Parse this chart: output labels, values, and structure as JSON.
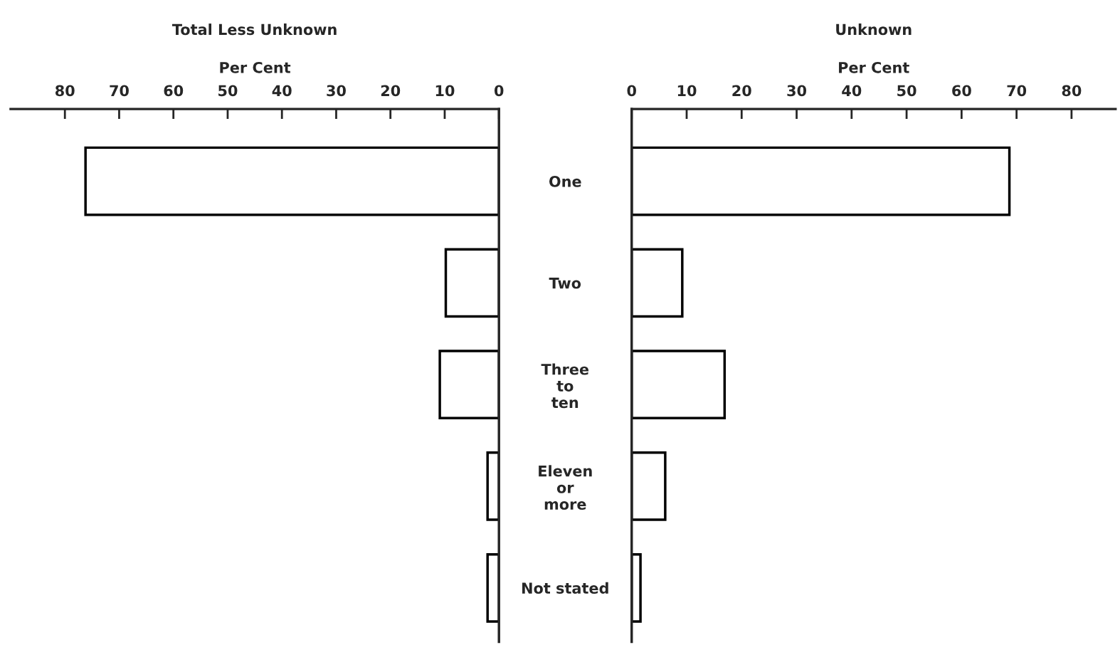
{
  "chart_data": [
    {
      "type": "bar",
      "orientation": "horizontal",
      "title": "Total Less Unknown",
      "xlabel": "Per Cent",
      "categories": [
        "One",
        "Two",
        "Three\nto\nten",
        "Eleven\nor\nmore",
        "Not stated"
      ],
      "values": [
        76.2,
        9.8,
        10.9,
        2.1,
        2.1
      ],
      "color": "#ffffff",
      "xlim": [
        90,
        0
      ],
      "xticks": [
        80,
        70,
        60,
        50,
        40,
        30,
        20,
        10,
        0
      ],
      "grid": false
    },
    {
      "type": "bar",
      "orientation": "horizontal",
      "title": "Unknown",
      "xlabel": "Per Cent",
      "categories": [
        null,
        null,
        null,
        null,
        null
      ],
      "values": [
        68.7,
        9.2,
        16.9,
        6.1,
        1.6
      ],
      "color": "#ffffff",
      "xlim": [
        0,
        88
      ],
      "xticks": [
        0,
        10,
        20,
        30,
        40,
        50,
        60,
        70,
        80
      ],
      "grid": false,
      "tick_labels": "x"
    }
  ]
}
